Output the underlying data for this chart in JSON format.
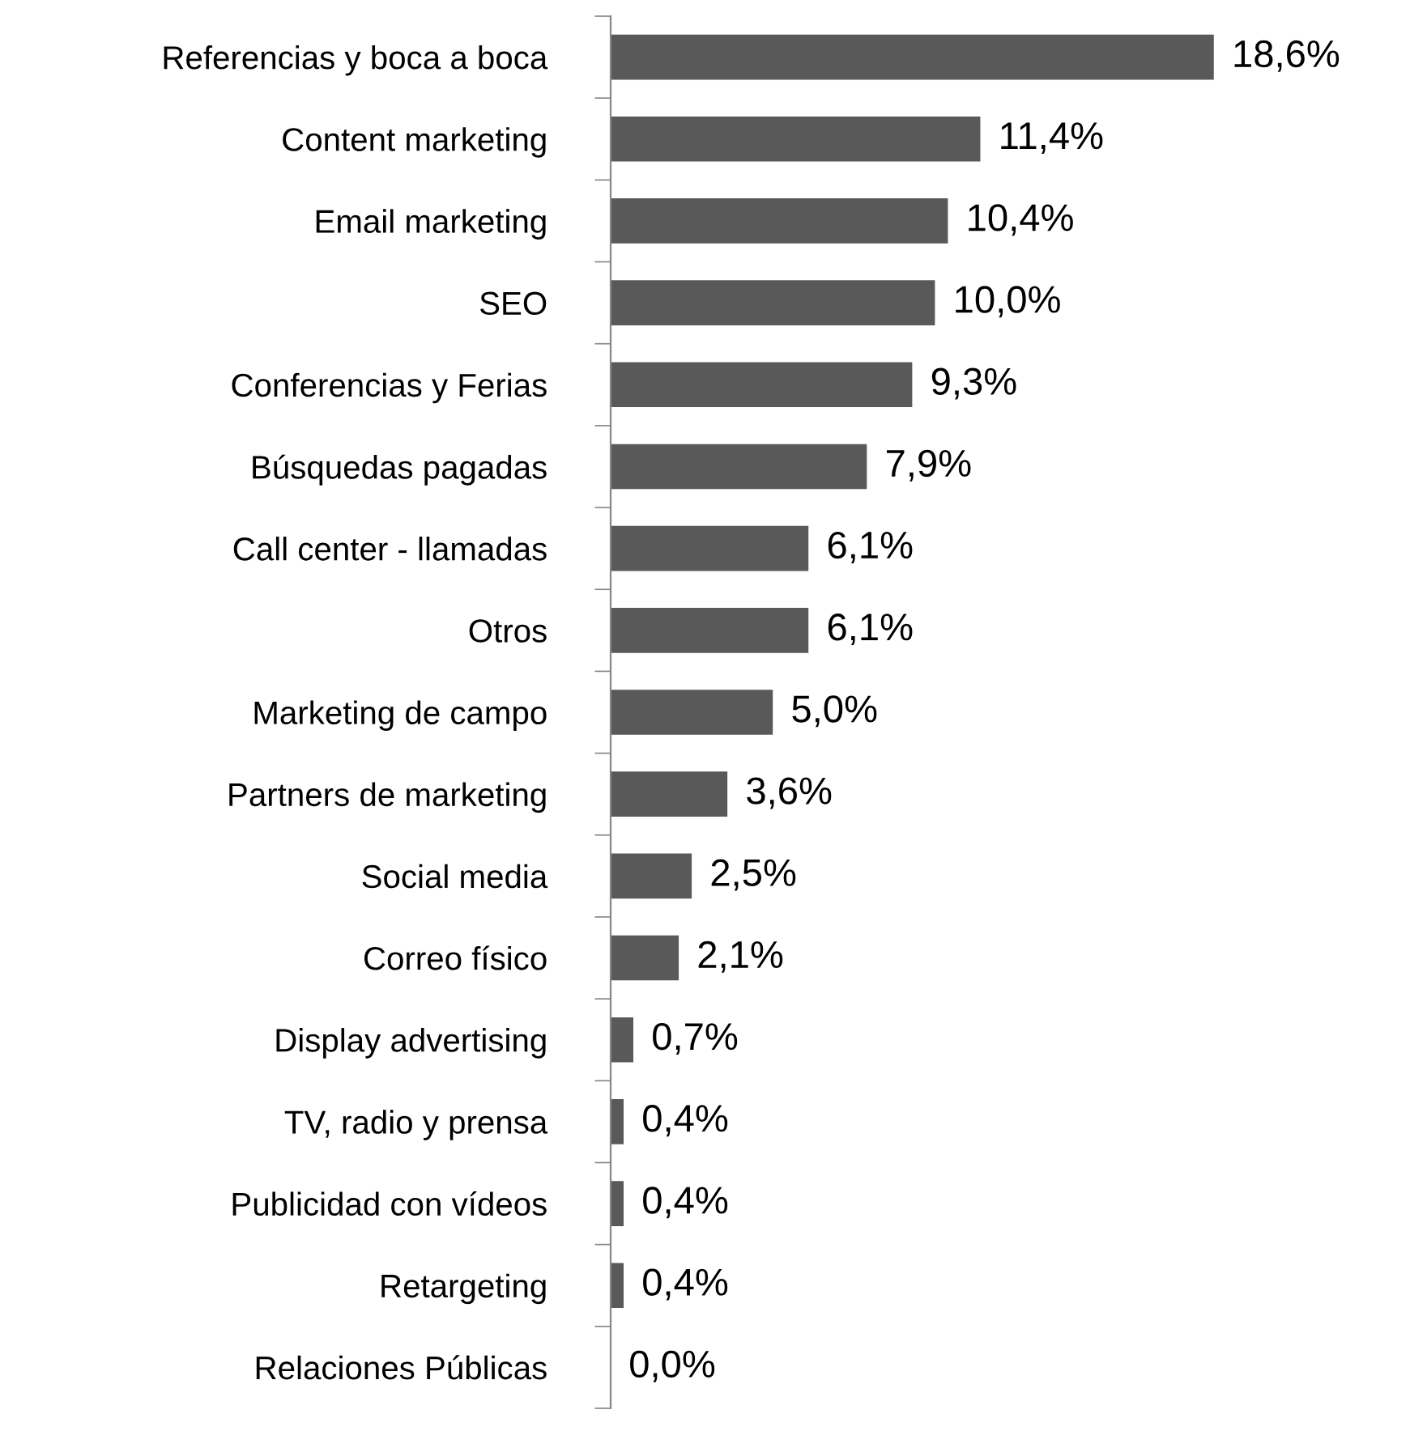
{
  "chart_data": {
    "type": "bar",
    "orientation": "horizontal",
    "categories": [
      "Referencias y boca a boca",
      "Content marketing",
      "Email marketing",
      "SEO",
      "Conferencias y Ferias",
      "Búsquedas pagadas",
      "Call center - llamadas",
      "Otros",
      "Marketing de campo",
      "Partners de marketing",
      "Social media",
      "Correo físico",
      "Display advertising",
      "TV, radio y prensa",
      "Publicidad con vídeos",
      "Retargeting",
      "Relaciones Públicas"
    ],
    "values": [
      18.6,
      11.4,
      10.4,
      10.0,
      9.3,
      7.9,
      6.1,
      6.1,
      5.0,
      3.6,
      2.5,
      2.1,
      0.7,
      0.4,
      0.4,
      0.4,
      0.0
    ],
    "value_labels": [
      "18,6%",
      "11,4%",
      "10,4%",
      "10,0%",
      "9,3%",
      "7,9%",
      "6,1%",
      "6,1%",
      "5,0%",
      "3,6%",
      "2,5%",
      "2,1%",
      "0,7%",
      "0,4%",
      "0,4%",
      "0,4%",
      "0,0%"
    ],
    "color": "#595959",
    "grid": false,
    "legend": false
  }
}
